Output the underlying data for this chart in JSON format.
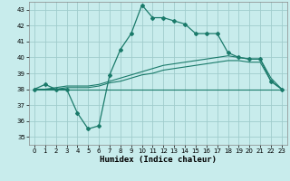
{
  "xlabel": "Humidex (Indice chaleur)",
  "xlim": [
    -0.5,
    23.5
  ],
  "ylim": [
    34.5,
    43.5
  ],
  "xticks": [
    0,
    1,
    2,
    3,
    4,
    5,
    6,
    7,
    8,
    9,
    10,
    11,
    12,
    13,
    14,
    15,
    16,
    17,
    18,
    19,
    20,
    21,
    22,
    23
  ],
  "yticks": [
    35,
    36,
    37,
    38,
    39,
    40,
    41,
    42,
    43
  ],
  "bg_color": "#c8ecec",
  "grid_color": "#a0cccc",
  "line_color": "#1a7a6a",
  "curve1_x": [
    0,
    1,
    2,
    3,
    4,
    5,
    6,
    7,
    8,
    9,
    10,
    11,
    12,
    13,
    14,
    15,
    16,
    17,
    18,
    19,
    20,
    21,
    22,
    23
  ],
  "curve1_y": [
    38.0,
    38.3,
    38.0,
    38.0,
    36.5,
    35.5,
    35.7,
    38.9,
    40.5,
    41.5,
    43.3,
    42.5,
    42.5,
    42.3,
    42.1,
    41.5,
    41.5,
    41.5,
    40.3,
    40.0,
    39.9,
    39.9,
    38.5,
    38.0
  ],
  "curve2_x": [
    0,
    1,
    2,
    3,
    4,
    5,
    6,
    7,
    8,
    9,
    10,
    11,
    12,
    13,
    14,
    15,
    16,
    17,
    18,
    19,
    20,
    21,
    22,
    23
  ],
  "curve2_y": [
    38.0,
    38.0,
    38.0,
    38.0,
    38.0,
    38.0,
    38.0,
    38.0,
    38.0,
    38.0,
    38.0,
    38.0,
    38.0,
    38.0,
    38.0,
    38.0,
    38.0,
    38.0,
    38.0,
    38.0,
    38.0,
    38.0,
    38.0,
    38.0
  ],
  "curve3_x": [
    0,
    1,
    2,
    3,
    4,
    5,
    6,
    7,
    8,
    9,
    10,
    11,
    12,
    13,
    14,
    15,
    16,
    17,
    18,
    19,
    20,
    21,
    22,
    23
  ],
  "curve3_y": [
    38.0,
    38.0,
    38.1,
    38.2,
    38.2,
    38.2,
    38.3,
    38.5,
    38.7,
    38.9,
    39.1,
    39.3,
    39.5,
    39.6,
    39.7,
    39.8,
    39.9,
    40.0,
    40.1,
    40.0,
    39.9,
    39.9,
    38.7,
    38.0
  ],
  "curve4_x": [
    0,
    1,
    2,
    3,
    4,
    5,
    6,
    7,
    8,
    9,
    10,
    11,
    12,
    13,
    14,
    15,
    16,
    17,
    18,
    19,
    20,
    21,
    22,
    23
  ],
  "curve4_y": [
    38.0,
    38.0,
    38.0,
    38.1,
    38.1,
    38.1,
    38.2,
    38.4,
    38.5,
    38.7,
    38.9,
    39.0,
    39.2,
    39.3,
    39.4,
    39.5,
    39.6,
    39.7,
    39.8,
    39.8,
    39.7,
    39.7,
    38.5,
    38.0
  ]
}
